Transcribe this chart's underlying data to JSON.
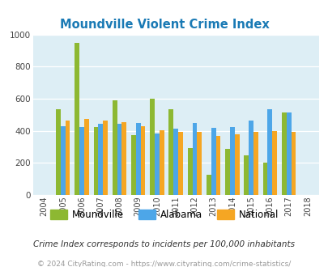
{
  "title": "Moundville Violent Crime Index",
  "years": [
    2004,
    2005,
    2006,
    2007,
    2008,
    2009,
    2010,
    2011,
    2012,
    2013,
    2014,
    2015,
    2016,
    2017,
    2018
  ],
  "moundville": [
    null,
    535,
    950,
    425,
    590,
    375,
    600,
    535,
    290,
    125,
    285,
    245,
    200,
    515,
    null
  ],
  "alabama": [
    null,
    430,
    425,
    445,
    445,
    450,
    385,
    415,
    450,
    420,
    425,
    465,
    535,
    515,
    null
  ],
  "national": [
    null,
    465,
    475,
    465,
    455,
    430,
    405,
    395,
    395,
    370,
    380,
    395,
    400,
    395,
    null
  ],
  "color_moundville": "#8db832",
  "color_alabama": "#4da6e8",
  "color_national": "#f5a623",
  "bg_color": "#ddeef5",
  "ylim": [
    0,
    1000
  ],
  "yticks": [
    0,
    200,
    400,
    600,
    800,
    1000
  ],
  "footnote1": "Crime Index corresponds to incidents per 100,000 inhabitants",
  "footnote2": "© 2024 CityRating.com - https://www.cityrating.com/crime-statistics/",
  "title_color": "#1a7ab5",
  "footnote1_color": "#333333",
  "footnote2_color": "#999999"
}
